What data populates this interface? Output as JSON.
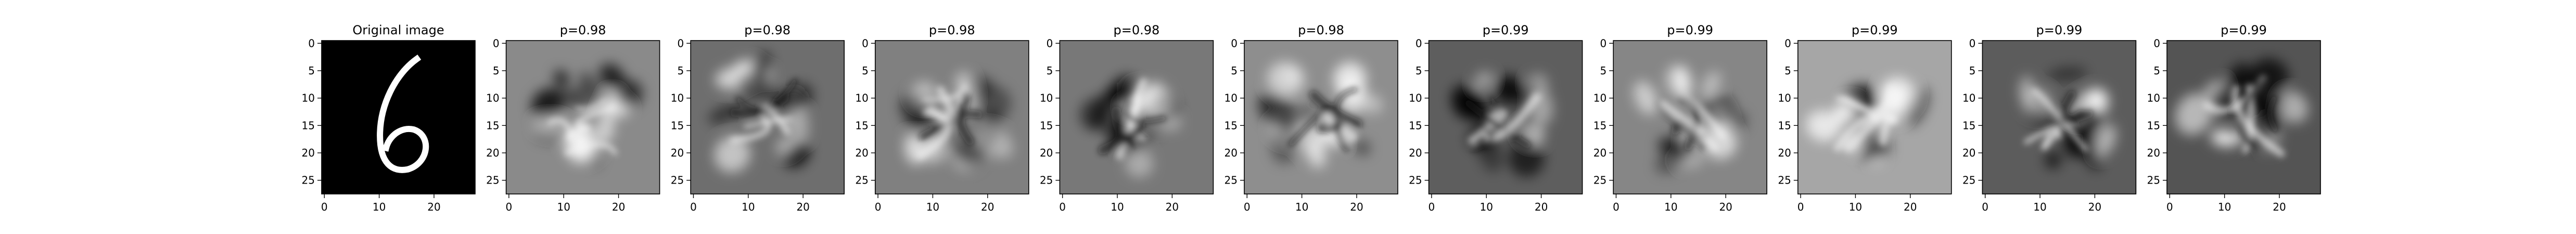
{
  "figure": {
    "panels": [
      {
        "title": "Original image",
        "kind": "digit",
        "digit": "6",
        "background_color": "#000000",
        "stroke_color": "#ffffff"
      },
      {
        "title": "p=0.98",
        "kind": "filter",
        "base_gray": "#8a8a8a"
      },
      {
        "title": "p=0.98",
        "kind": "filter",
        "base_gray": "#6e6e6e"
      },
      {
        "title": "p=0.98",
        "kind": "filter",
        "base_gray": "#808080"
      },
      {
        "title": "p=0.98",
        "kind": "filter",
        "base_gray": "#787878"
      },
      {
        "title": "p=0.98",
        "kind": "filter",
        "base_gray": "#8e8e8e"
      },
      {
        "title": "p=0.99",
        "kind": "filter",
        "base_gray": "#5e5e5e"
      },
      {
        "title": "p=0.99",
        "kind": "filter",
        "base_gray": "#868686"
      },
      {
        "title": "p=0.99",
        "kind": "filter",
        "base_gray": "#a6a6a6"
      },
      {
        "title": "p=0.99",
        "kind": "filter",
        "base_gray": "#5c5c5c"
      },
      {
        "title": "p=0.99",
        "kind": "filter",
        "base_gray": "#545454"
      }
    ],
    "x_ticks": [
      "0",
      "10",
      "20"
    ],
    "y_ticks": [
      "0",
      "5",
      "10",
      "15",
      "20",
      "25"
    ],
    "grid": false
  }
}
